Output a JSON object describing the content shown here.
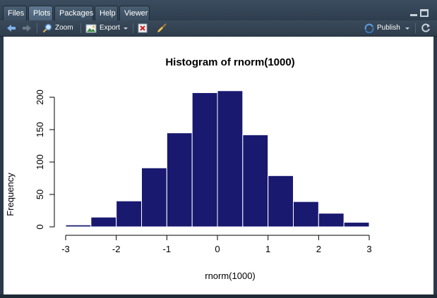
{
  "tabs": [
    {
      "label": "Files",
      "active": false
    },
    {
      "label": "Plots",
      "active": true
    },
    {
      "label": "Packages",
      "active": false
    },
    {
      "label": "Help",
      "active": false
    },
    {
      "label": "Viewer",
      "active": false
    }
  ],
  "toolbar": {
    "zoom_label": "Zoom",
    "export_label": "Export",
    "publish_label": "Publish"
  },
  "colors": {
    "bar_fill": "#191970",
    "bar_border": "#ffffff",
    "accent": "#3a6fd0"
  },
  "icons": {
    "back": "arrow-left-icon",
    "forward": "arrow-right-icon",
    "zoom": "magnifier-icon",
    "export": "image-export-icon",
    "remove": "remove-plot-icon",
    "clear": "broom-icon",
    "publish": "publish-icon",
    "refresh": "refresh-icon"
  },
  "chart_data": {
    "type": "bar",
    "title": "Histogram of rnorm(1000)",
    "xlabel": "rnorm(1000)",
    "ylabel": "Frequency",
    "bin_edges": [
      -3.0,
      -2.5,
      -2.0,
      -1.5,
      -1.0,
      -0.5,
      0.0,
      0.5,
      1.0,
      1.5,
      2.0,
      2.5,
      3.0
    ],
    "values": [
      3,
      15,
      40,
      91,
      145,
      207,
      210,
      142,
      79,
      39,
      21,
      7
    ],
    "xlim": [
      -3,
      3
    ],
    "ylim": [
      0,
      200
    ],
    "xticks": [
      "-3",
      "-2",
      "-1",
      "0",
      "1",
      "2",
      "3"
    ],
    "yticks": [
      "0",
      "50",
      "100",
      "150",
      "200"
    ],
    "grid": false,
    "legend": "none"
  }
}
